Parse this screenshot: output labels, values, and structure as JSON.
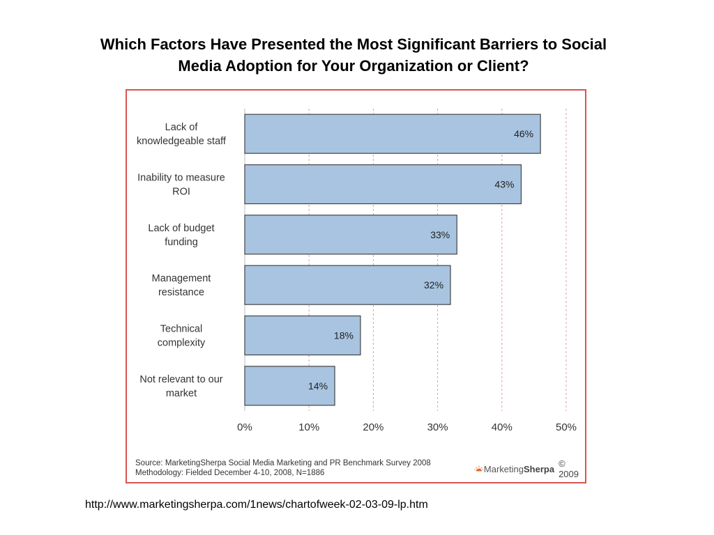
{
  "title": "Which Factors Have Presented the Most Significant Barriers to Social Media Adoption for Your Organization or Client?",
  "chart_data": {
    "type": "bar",
    "orientation": "horizontal",
    "categories": [
      "Lack of knowledgeable staff",
      "Inability to measure ROI",
      "Lack of budget funding",
      "Management resistance",
      "Technical complexity",
      "Not relevant to our market"
    ],
    "category_lines": [
      [
        "Lack of",
        "knowledgeable staff"
      ],
      [
        "Inability to measure",
        "ROI"
      ],
      [
        "Lack of budget",
        "funding"
      ],
      [
        "Management",
        "resistance"
      ],
      [
        "Technical",
        "complexity"
      ],
      [
        "Not relevant to our",
        "market"
      ]
    ],
    "values": [
      46,
      43,
      33,
      32,
      18,
      14
    ],
    "value_labels": [
      "46%",
      "43%",
      "33%",
      "32%",
      "18%",
      "14%"
    ],
    "xlim": [
      0,
      50
    ],
    "x_ticks": [
      0,
      10,
      20,
      30,
      40,
      50
    ],
    "x_tick_labels": [
      "0%",
      "10%",
      "20%",
      "30%",
      "40%",
      "50%"
    ],
    "grid": "vertical dashed",
    "bar_color": "#a8c4e0",
    "bar_edge_color": "#444444",
    "grid_color": "#e39c9c",
    "frame_color": "#d9534f"
  },
  "source": {
    "line1": "Source: MarketingSherpa Social Media Marketing and PR Benchmark Survey 2008",
    "line2": "Methodology: Fielded December 4-10, 2008, N=1886"
  },
  "logo": {
    "brand_prefix": "Marketing",
    "brand_bold": "Sherpa",
    "copyright": "© 2009"
  },
  "url": "http://www.marketingsherpa.com/1news/chartofweek-02-03-09-lp.htm"
}
